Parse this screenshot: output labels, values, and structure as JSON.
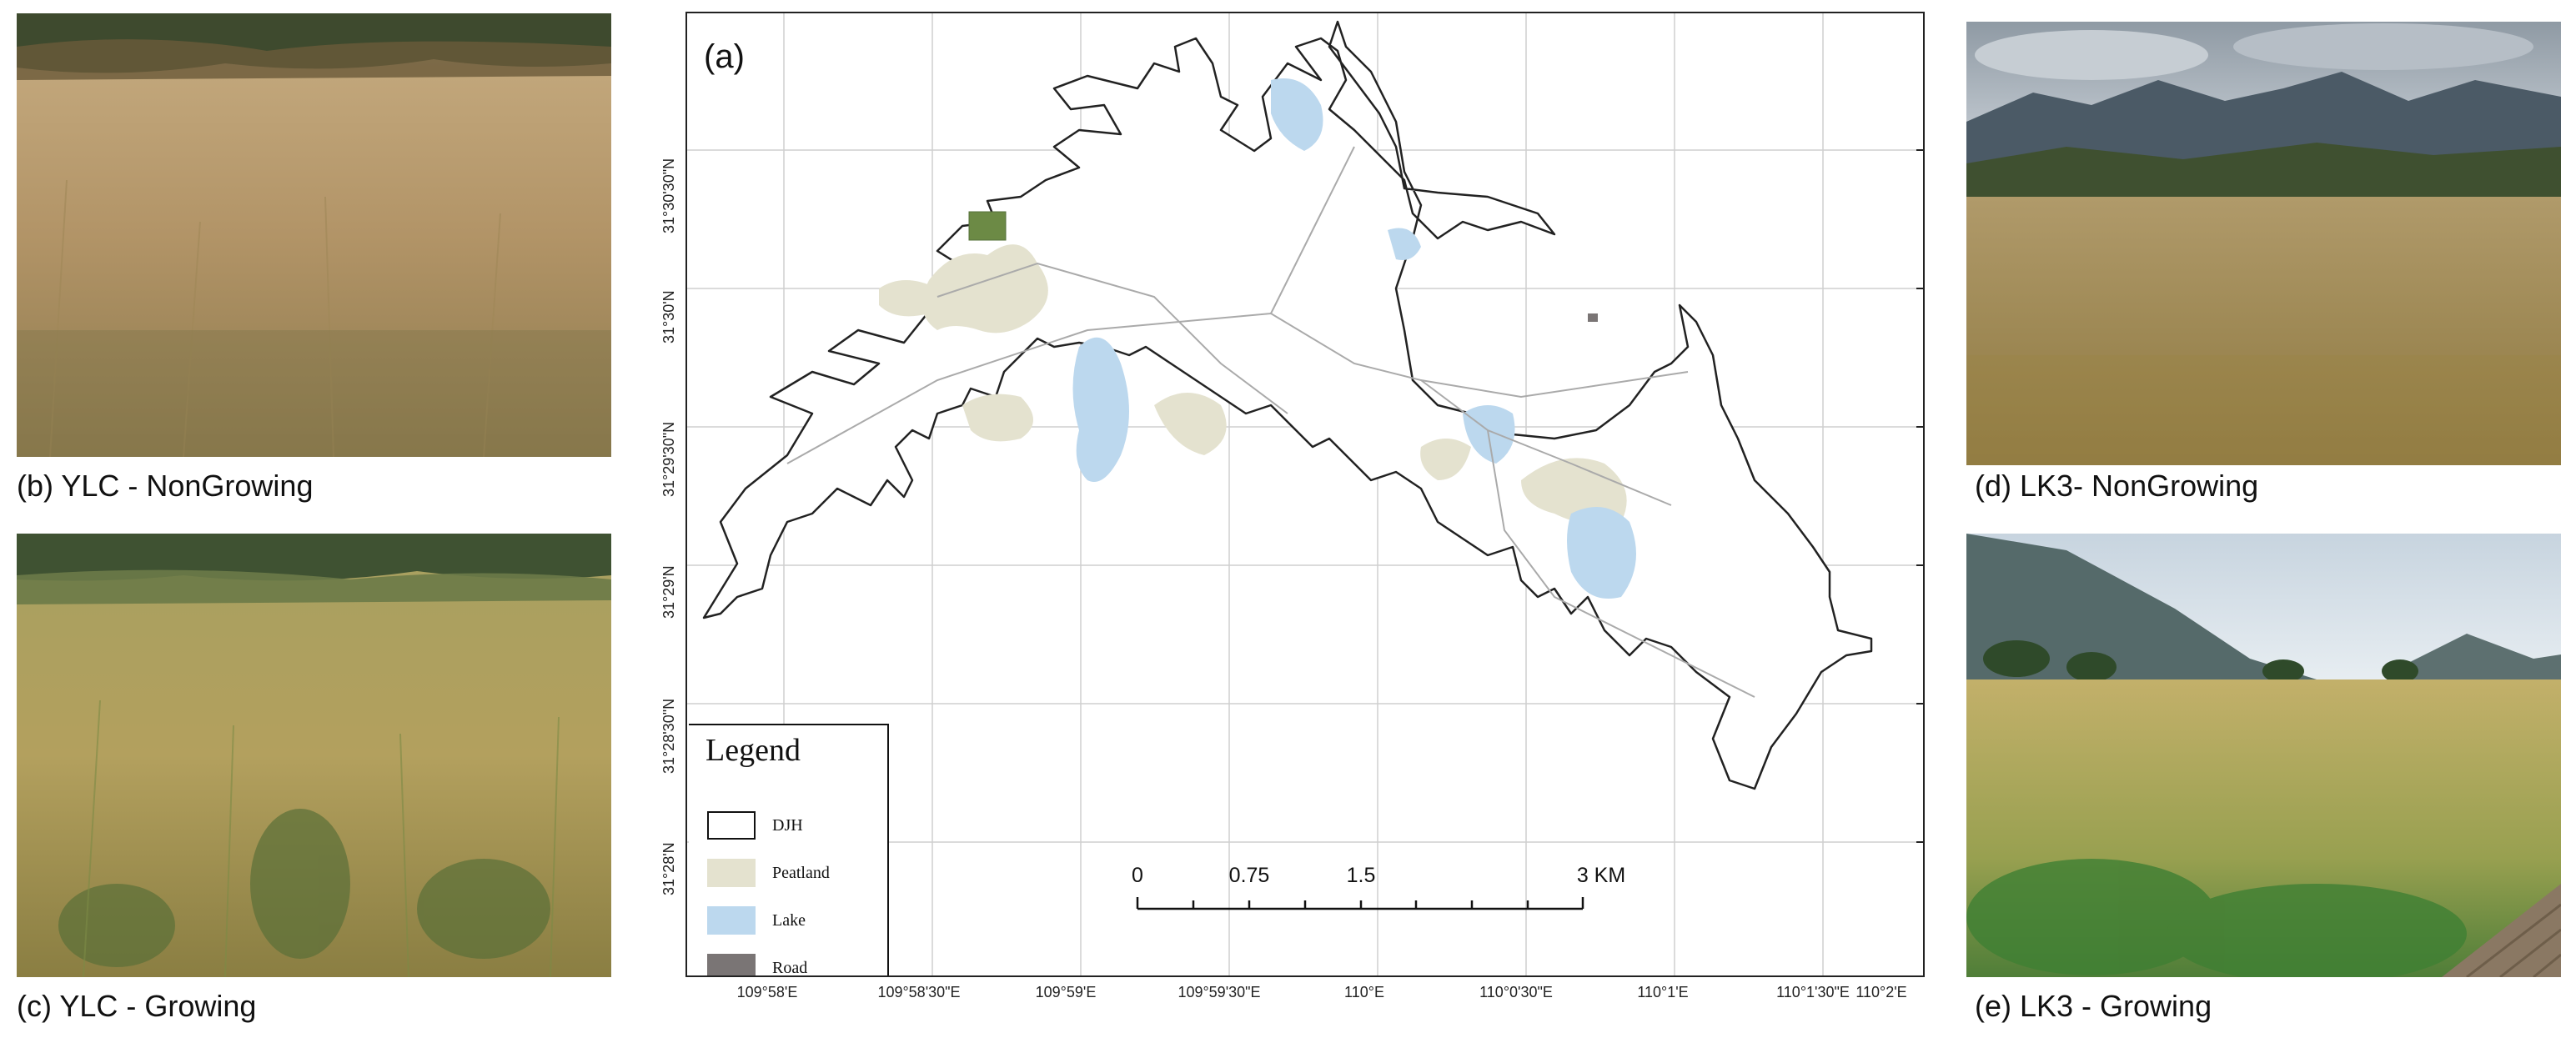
{
  "photos": {
    "b": {
      "caption": "(b) YLC - NonGrowing"
    },
    "c": {
      "caption": "(c) YLC - Growing"
    },
    "d": {
      "caption": "(d) LK3- NonGrowing"
    },
    "e": {
      "caption": "(e) LK3 - Growing"
    }
  },
  "map": {
    "panel_label": "(a)",
    "lat_labels": [
      "31°30'30\"N",
      "31°30'N",
      "31°29'30\"N",
      "31°29'N",
      "31°28'30\"N",
      "31°28'N"
    ],
    "lon_labels": [
      "109°58'E",
      "109°58'30\"E",
      "109°59'E",
      "109°59'30\"E",
      "110°E",
      "110°0'30\"E",
      "110°1'E",
      "110°1'30\"E",
      "110°2'E"
    ],
    "legend": {
      "title": "Legend",
      "items": [
        {
          "label": "DJH",
          "color": "#ffffff"
        },
        {
          "label": "Peatland",
          "color": "#e4e2cf"
        },
        {
          "label": "Lake",
          "color": "#bcd8ee"
        },
        {
          "label": "Road",
          "color": "#7a7575"
        }
      ]
    },
    "scale_bar": {
      "labels": [
        "0",
        "0.75",
        "1.5",
        "3 KM"
      ]
    }
  }
}
